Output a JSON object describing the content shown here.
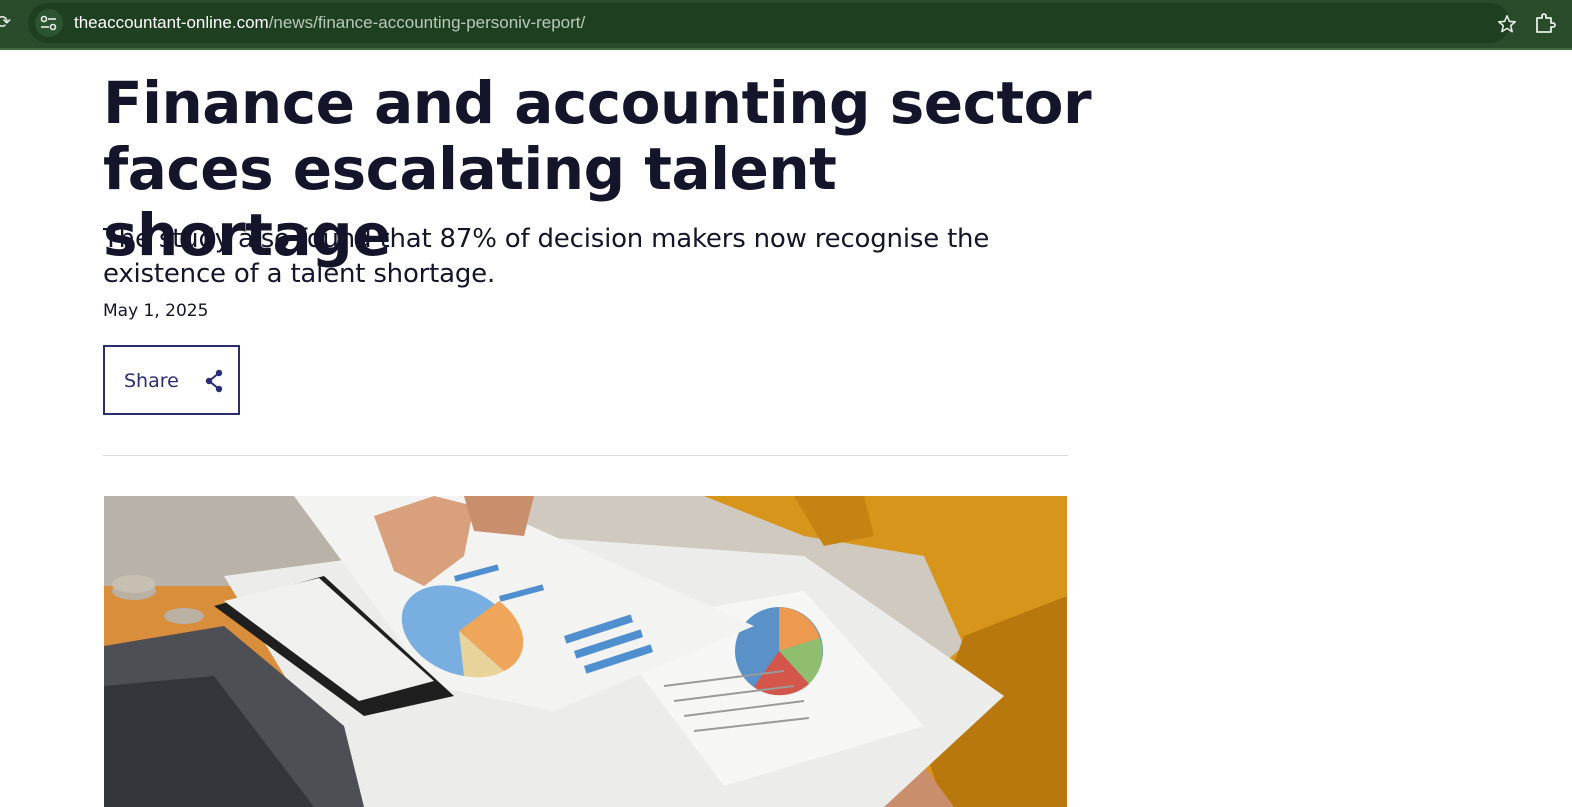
{
  "browser": {
    "url_domain": "theaccountant-online.com",
    "url_path": "/news/finance-accounting-personiv-report/",
    "bar_color": "#2a4c2b",
    "icons": [
      "tune-icon",
      "star-icon",
      "extensions-icon"
    ]
  },
  "article": {
    "headline": "Finance and accounting sector faces escalating talent shortage",
    "standfirst": "The study also found that 87% of decision makers now recognise the existence of a talent shortage.",
    "date": "May 1, 2025",
    "share_label": "Share",
    "accent_color": "#2b2d73",
    "text_color": "#14152b"
  },
  "hero_image": {
    "subject": "person in mustard jacket reviewing printed charts at a desk with laptop and coins"
  }
}
